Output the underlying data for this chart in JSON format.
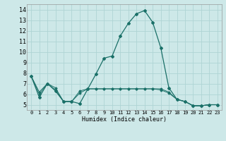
{
  "xlabel": "Humidex (Indice chaleur)",
  "bg_color": "#cde8e8",
  "grid_color": "#afd4d4",
  "line_color": "#1a7068",
  "xlim": [
    -0.5,
    23.5
  ],
  "ylim": [
    4.5,
    14.5
  ],
  "xticks": [
    0,
    1,
    2,
    3,
    4,
    5,
    6,
    7,
    8,
    9,
    10,
    11,
    12,
    13,
    14,
    15,
    16,
    17,
    18,
    19,
    20,
    21,
    22,
    23
  ],
  "yticks": [
    5,
    6,
    7,
    8,
    9,
    10,
    11,
    12,
    13,
    14
  ],
  "series_main": [
    7.7,
    5.7,
    7.0,
    6.3,
    5.3,
    5.3,
    5.1,
    6.5,
    7.9,
    9.4,
    9.6,
    11.5,
    12.7,
    13.6,
    13.9,
    12.8,
    10.4,
    6.6,
    5.5,
    5.3,
    4.9,
    4.9,
    5.0,
    5.0
  ],
  "series_flat1": [
    7.7,
    6.2,
    7.0,
    6.6,
    5.3,
    5.3,
    6.1,
    6.5,
    6.5,
    6.5,
    6.5,
    6.5,
    6.5,
    6.5,
    6.5,
    6.5,
    6.4,
    6.1,
    5.5,
    5.3,
    4.9,
    4.9,
    5.0,
    5.0
  ],
  "series_flat2": [
    7.7,
    6.0,
    7.0,
    6.4,
    5.3,
    5.3,
    6.3,
    6.5,
    6.5,
    6.5,
    6.5,
    6.5,
    6.5,
    6.5,
    6.5,
    6.5,
    6.5,
    6.2,
    5.5,
    5.3,
    4.9,
    4.9,
    5.0,
    5.0
  ],
  "x": [
    0,
    1,
    2,
    3,
    4,
    5,
    6,
    7,
    8,
    9,
    10,
    11,
    12,
    13,
    14,
    15,
    16,
    17,
    18,
    19,
    20,
    21,
    22,
    23
  ]
}
